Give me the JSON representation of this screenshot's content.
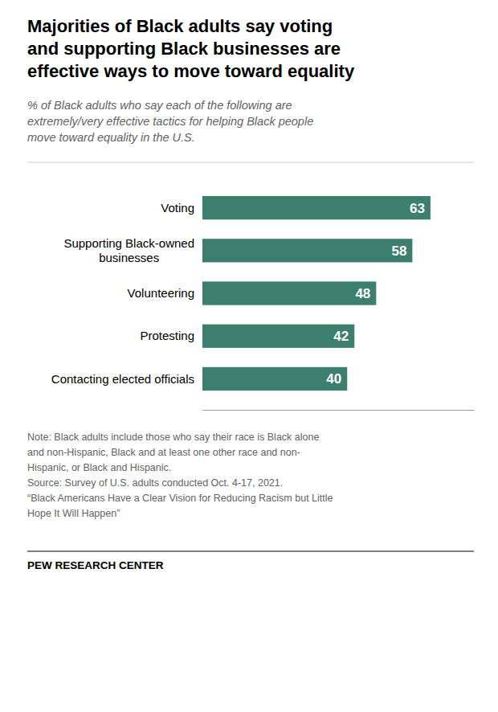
{
  "chart_data": {
    "type": "bar",
    "orientation": "horizontal",
    "title": "Majorities of Black adults say voting\nand supporting Black businesses are\neffective ways to move toward equality",
    "subtitle": "% of Black adults who say each of the following are\nextremely/very effective tactics for helping Black people\nmove toward equality in the U.S.",
    "categories": [
      "Voting",
      "Supporting Black-owned\nbusinesses",
      "Volunteering",
      "Protesting",
      "Contacting elected officials"
    ],
    "values": [
      63,
      58,
      48,
      42,
      40
    ],
    "color": "#3d7f6e",
    "xlim": [
      0,
      75
    ],
    "data_labels": true,
    "tick_labels": false,
    "grid": false,
    "note": "Note: Black adults include those who say their race is Black alone\nand non-Hispanic, Black and at least one other race and non-\nHispanic, or Black and Hispanic.\nSource: Survey of U.S. adults conducted Oct. 4-17, 2021.\n“Black Americans Have a Clear Vision for Reducing Racism but Little\nHope It Will Happen”",
    "footer": "PEW RESEARCH CENTER"
  }
}
